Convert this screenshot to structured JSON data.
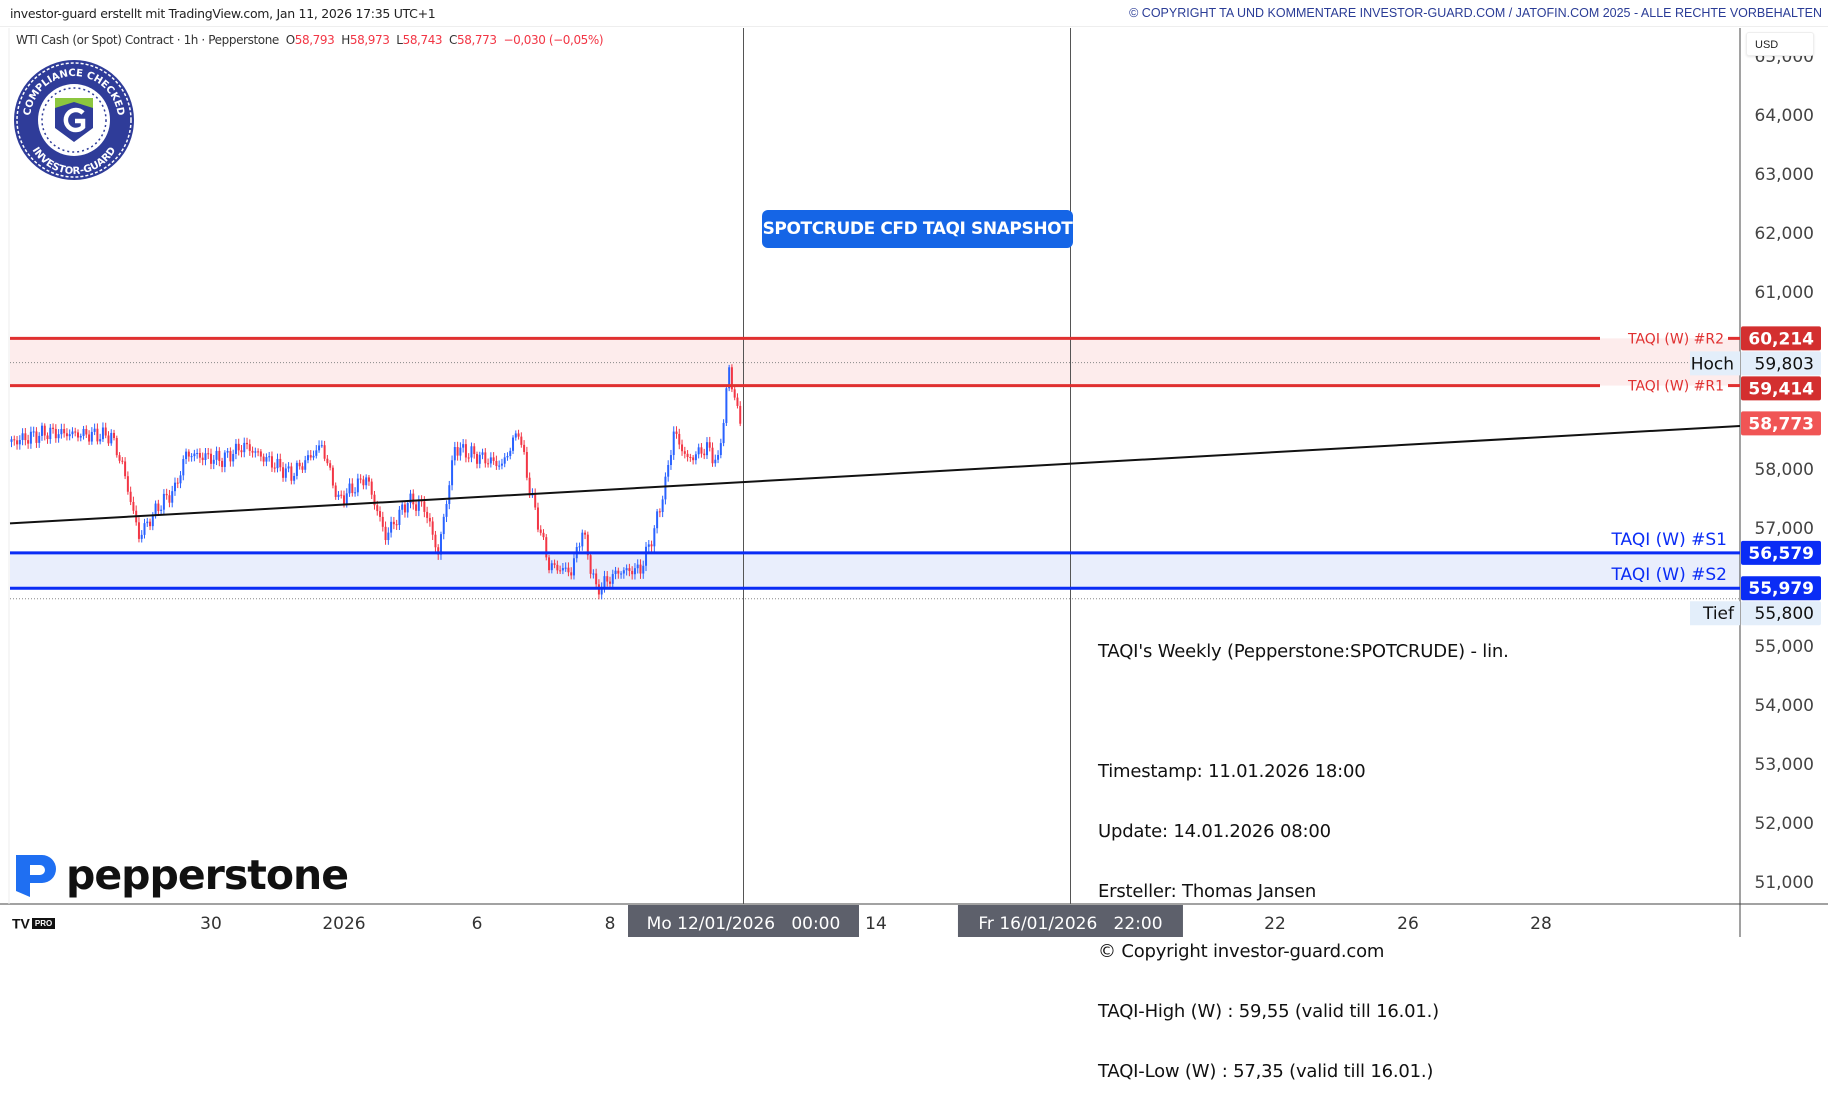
{
  "header": {
    "credit": "investor-guard erstellt mit TradingView.com, Jan 11, 2026 17:35 UTC+1",
    "copyright": "© COPYRIGHT TA UND KOMMENTARE INVESTOR-GUARD.COM / JATOFIN.COM 2025 - ALLE RECHTE VORBEHALTEN"
  },
  "legend": {
    "symbol": "WTI Cash (or Spot) Contract · 1h · Pepperstone",
    "open_label": "O",
    "open": "58,793",
    "high_label": "H",
    "high": "58,973",
    "low_label": "L",
    "low": "58,743",
    "close_label": "C",
    "close": "58,773",
    "change": "−0,030 (−0,05%)"
  },
  "currency": "USD",
  "badge": {
    "top_text": "COMPLIANCE CHECKED",
    "bottom_text": "INVESTOR-GUARD",
    "letter": "G"
  },
  "snapshot_button": "SPOTCRUDE CFD TAQI SNAPSHOT",
  "notes": [
    "TAQI's Weekly (Pepperstone:SPOTCRUDE) - lin.",
    "",
    "Timestamp: 11.01.2026 18:00",
    "Update: 14.01.2026 08:00",
    "Ersteller: Thomas Jansen",
    "© Copyright investor-guard.com",
    "TAQI-High (W) : 59,55 (valid till 16.01.)",
    "TAQI-Low (W) : 57,35 (valid till 16.01.)"
  ],
  "broker_logo": "pepperstone",
  "tv_logo": {
    "mark": "TV",
    "badge": "PRO"
  },
  "colors": {
    "up": "#2962ff",
    "down": "#f23645",
    "resistance": "#e03030",
    "support": "#0a2cf5",
    "resistance_zone": "#fdecec",
    "support_zone": "#e9eefc",
    "last_price": "#f05555",
    "time_highlight": "#5d606b"
  },
  "chart_data": {
    "type": "candlestick",
    "interval": "1h",
    "y_range": [
      50.6,
      65.2
    ],
    "y_ticks": [
      65,
      64,
      63,
      62,
      61,
      60,
      59,
      58,
      57,
      56,
      55,
      54,
      53,
      52,
      51
    ],
    "y_tick_labels": [
      "65,000",
      "64,000",
      "63,000",
      "62,000",
      "61,000",
      "60,000",
      "59,000",
      "58,000",
      "57,000",
      "56,000",
      "55,000",
      "54,000",
      "53,000",
      "52,000",
      "51,000"
    ],
    "x_ticks": [
      {
        "label": "30",
        "date": "2025-12-30 00:00"
      },
      {
        "label": "2026",
        "date": "2026-01-02 00:00"
      },
      {
        "label": "6",
        "date": "2026-01-06 00:00"
      },
      {
        "label": "8",
        "date": "2026-01-08 00:00"
      },
      {
        "label": "14",
        "date": "2026-01-14 00:00"
      },
      {
        "label": "22",
        "date": "2026-01-22 00:00"
      },
      {
        "label": "26",
        "date": "2026-01-26 00:00"
      },
      {
        "label": "28",
        "date": "2026-01-28 00:00"
      }
    ],
    "x_highlights": [
      {
        "label": "Mo 12/01/2026   00:00",
        "date": "2026-01-12 00:00"
      },
      {
        "label": "Fr 16/01/2026   22:00",
        "date": "2026-01-16 22:00"
      }
    ],
    "price_path": [
      [
        "2025-12-24 00:00",
        58.46
      ],
      [
        "2025-12-24 13:00",
        58.62
      ],
      [
        "2025-12-26 12:00",
        58.56
      ],
      [
        "2025-12-26 16:00",
        58.06
      ],
      [
        "2025-12-26 22:00",
        56.86
      ],
      [
        "2025-12-29 05:00",
        57.36
      ],
      [
        "2025-12-29 11:00",
        57.66
      ],
      [
        "2025-12-29 15:00",
        58.26
      ],
      [
        "2025-12-30 04:00",
        58.16
      ],
      [
        "2025-12-30 12:00",
        58.4
      ],
      [
        "2025-12-31 05:00",
        57.9
      ],
      [
        "2025-12-31 16:00",
        58.4
      ],
      [
        "2025-12-31 22:00",
        57.46
      ],
      [
        "2026-01-02 08:00",
        57.86
      ],
      [
        "2026-01-02 15:00",
        56.86
      ],
      [
        "2026-01-02 23:00",
        57.46
      ],
      [
        "2026-01-05 05:00",
        57.36
      ],
      [
        "2026-01-05 10:00",
        56.56
      ],
      [
        "2026-01-05 16:00",
        58.36
      ],
      [
        "2026-01-06 09:00",
        58.06
      ],
      [
        "2026-01-06 15:00",
        58.66
      ],
      [
        "2026-01-06 19:00",
        57.66
      ],
      [
        "2026-01-07 02:00",
        56.36
      ],
      [
        "2026-01-07 10:00",
        56.26
      ],
      [
        "2026-01-07 14:00",
        56.96
      ],
      [
        "2026-01-07 19:00",
        55.95
      ],
      [
        "2026-01-08 03:00",
        56.26
      ],
      [
        "2026-01-08 11:00",
        56.3
      ],
      [
        "2026-01-08 16:00",
        56.96
      ],
      [
        "2026-01-08 20:00",
        57.76
      ],
      [
        "2026-01-08 23:00",
        58.62
      ],
      [
        "2026-01-09 04:00",
        58.16
      ],
      [
        "2026-01-09 11:00",
        58.36
      ],
      [
        "2026-01-09 15:00",
        58.1
      ],
      [
        "2026-01-09 19:00",
        59.67
      ],
      [
        "2026-01-09 23:00",
        58.773
      ]
    ],
    "levels": [
      {
        "name": "TAQI (W) #R2",
        "price": 60.214,
        "label": "60,214",
        "kind": "resistance"
      },
      {
        "name": "TAQI (W) #R1",
        "price": 59.414,
        "label": "59,414",
        "kind": "resistance"
      },
      {
        "name": "TAQI (W) #S1",
        "price": 56.579,
        "label": "56,579",
        "kind": "support"
      },
      {
        "name": "TAQI (W) #S2",
        "price": 55.979,
        "label": "55,979",
        "kind": "support"
      }
    ],
    "high": {
      "name": "Hoch",
      "price": 59.803,
      "label": "59,803"
    },
    "low": {
      "name": "Tief",
      "price": 55.8,
      "label": "55,800"
    },
    "last_price": {
      "price": 58.773,
      "label": "58,773"
    },
    "trendline": [
      [
        "2025-12-24 00:00",
        57.08
      ],
      [
        "2026-02-02 00:00",
        58.73
      ]
    ]
  }
}
